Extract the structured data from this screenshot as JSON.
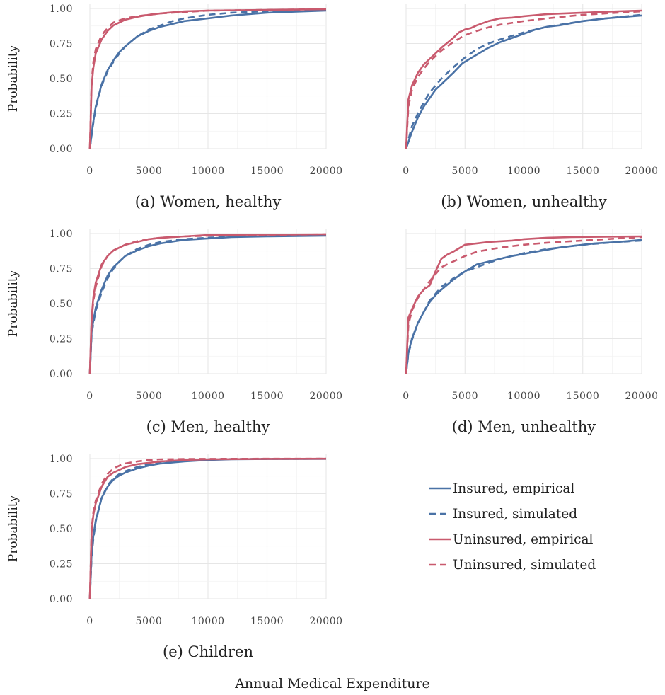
{
  "chart_data": {
    "type": "line",
    "xlabel": "Annual Medical Expenditure",
    "ylabel": "Probability",
    "xlim": [
      0,
      20000
    ],
    "ylim": [
      0,
      1
    ],
    "x_ticks": [
      "0",
      "5000",
      "10000",
      "15000",
      "20000"
    ],
    "y_ticks": [
      "0.00",
      "0.25",
      "0.50",
      "0.75",
      "1.00"
    ],
    "grid": true,
    "legend_position": "right",
    "legend": [
      {
        "label": "Insured, empirical",
        "color": "#4a72a6",
        "dash": "solid"
      },
      {
        "label": "Insured, simulated",
        "color": "#4a72a6",
        "dash": "dashed"
      },
      {
        "label": "Uninsured, empirical",
        "color": "#c95a6e",
        "dash": "solid"
      },
      {
        "label": "Uninsured, simulated",
        "color": "#c95a6e",
        "dash": "dashed"
      }
    ],
    "panels": [
      {
        "caption": "(a) Women, healthy",
        "series": [
          {
            "x": [
              0,
              250,
              500,
              1000,
              1500,
              2000,
              2500,
              3000,
              4000,
              5000,
              6000,
              7000,
              8000,
              10000,
              12000,
              15000,
              20000
            ],
            "y": [
              0,
              0.17,
              0.3,
              0.46,
              0.56,
              0.63,
              0.69,
              0.73,
              0.8,
              0.84,
              0.87,
              0.89,
              0.91,
              0.93,
              0.95,
              0.97,
              0.985
            ]
          },
          {
            "x": [
              0,
              250,
              500,
              1000,
              1500,
              2000,
              2500,
              3000,
              4000,
              5000,
              6000,
              7000,
              8000,
              10000,
              12000,
              15000,
              20000
            ],
            "y": [
              0,
              0.16,
              0.29,
              0.45,
              0.55,
              0.62,
              0.68,
              0.73,
              0.8,
              0.85,
              0.88,
              0.91,
              0.93,
              0.955,
              0.97,
              0.98,
              0.99
            ]
          },
          {
            "x": [
              0,
              150,
              300,
              500,
              1000,
              1500,
              2000,
              3000,
              4000,
              5000,
              6000,
              8000,
              10000,
              15000,
              20000
            ],
            "y": [
              0,
              0.45,
              0.58,
              0.68,
              0.78,
              0.84,
              0.88,
              0.92,
              0.94,
              0.955,
              0.965,
              0.98,
              0.985,
              0.99,
              0.995
            ]
          },
          {
            "x": [
              0,
              150,
              300,
              500,
              1000,
              1500,
              2000,
              3000,
              4000,
              5000,
              6000,
              8000,
              10000,
              15000,
              20000
            ],
            "y": [
              0,
              0.48,
              0.62,
              0.71,
              0.81,
              0.86,
              0.9,
              0.93,
              0.945,
              0.955,
              0.965,
              0.975,
              0.985,
              0.99,
              0.995
            ]
          }
        ]
      },
      {
        "caption": "(b) Women, unhealthy",
        "series": [
          {
            "x": [
              0,
              500,
              1000,
              1500,
              2000,
              2500,
              3000,
              4000,
              4800,
              5200,
              6000,
              7000,
              8000,
              9000,
              10000,
              11000,
              12000,
              13000,
              15000,
              17000,
              20000
            ],
            "y": [
              0,
              0.12,
              0.22,
              0.3,
              0.36,
              0.42,
              0.46,
              0.54,
              0.61,
              0.63,
              0.67,
              0.72,
              0.76,
              0.79,
              0.82,
              0.85,
              0.87,
              0.88,
              0.91,
              0.93,
              0.95
            ]
          },
          {
            "x": [
              0,
              500,
              1000,
              1500,
              2000,
              3000,
              4000,
              5000,
              6000,
              7000,
              8000,
              10000,
              12000,
              15000,
              17000,
              20000
            ],
            "y": [
              0,
              0.16,
              0.25,
              0.33,
              0.4,
              0.5,
              0.58,
              0.65,
              0.71,
              0.75,
              0.78,
              0.83,
              0.87,
              0.91,
              0.93,
              0.955
            ]
          },
          {
            "x": [
              0,
              200,
              500,
              1000,
              1500,
              2000,
              3000,
              4000,
              4500,
              5000,
              5500,
              6000,
              7000,
              8000,
              9000,
              10000,
              12000,
              15000,
              18000,
              20000
            ],
            "y": [
              0,
              0.35,
              0.45,
              0.54,
              0.6,
              0.64,
              0.72,
              0.79,
              0.83,
              0.85,
              0.86,
              0.88,
              0.91,
              0.93,
              0.935,
              0.945,
              0.96,
              0.97,
              0.98,
              0.985
            ]
          },
          {
            "x": [
              0,
              200,
              500,
              1000,
              1500,
              2000,
              3000,
              4000,
              5000,
              6000,
              7000,
              8000,
              10000,
              12000,
              15000,
              18000,
              20000
            ],
            "y": [
              0,
              0.3,
              0.42,
              0.51,
              0.57,
              0.62,
              0.7,
              0.76,
              0.81,
              0.84,
              0.865,
              0.885,
              0.91,
              0.93,
              0.955,
              0.97,
              0.98
            ]
          }
        ]
      },
      {
        "caption": "(c) Men, healthy",
        "series": [
          {
            "x": [
              0,
              150,
              300,
              500,
              1000,
              1500,
              2000,
              2500,
              3000,
              4000,
              5000,
              6000,
              8000,
              10000,
              12000,
              15000,
              20000
            ],
            "y": [
              0,
              0.3,
              0.38,
              0.47,
              0.6,
              0.7,
              0.76,
              0.8,
              0.84,
              0.88,
              0.91,
              0.93,
              0.955,
              0.965,
              0.975,
              0.98,
              0.985
            ]
          },
          {
            "x": [
              0,
              150,
              300,
              500,
              1000,
              1500,
              2000,
              2500,
              3000,
              4000,
              5000,
              6000,
              8000,
              10000,
              12000,
              15000,
              20000
            ],
            "y": [
              0,
              0.28,
              0.36,
              0.45,
              0.58,
              0.68,
              0.75,
              0.8,
              0.84,
              0.89,
              0.92,
              0.94,
              0.96,
              0.97,
              0.98,
              0.985,
              0.99
            ]
          },
          {
            "x": [
              0,
              150,
              300,
              500,
              1000,
              1500,
              2000,
              3000,
              4000,
              5000,
              6000,
              8000,
              10000,
              15000,
              20000
            ],
            "y": [
              0,
              0.4,
              0.55,
              0.65,
              0.78,
              0.84,
              0.88,
              0.92,
              0.94,
              0.96,
              0.97,
              0.98,
              0.99,
              0.993,
              0.995
            ]
          },
          {
            "x": [
              0,
              150,
              300,
              500,
              1000,
              1500,
              2000,
              3000,
              4000,
              5000,
              6000,
              8000,
              10000,
              15000,
              20000
            ],
            "y": [
              0,
              0.38,
              0.52,
              0.62,
              0.77,
              0.84,
              0.88,
              0.92,
              0.945,
              0.96,
              0.97,
              0.98,
              0.985,
              0.99,
              0.995
            ]
          }
        ]
      },
      {
        "caption": "(d) Men, unhealthy",
        "series": [
          {
            "x": [
              0,
              200,
              500,
              1000,
              1500,
              2000,
              2500,
              3000,
              4000,
              5000,
              6000,
              7000,
              8000,
              9000,
              10000,
              11000,
              12000,
              13000,
              14000,
              16000,
              18000,
              20000
            ],
            "y": [
              0,
              0.15,
              0.25,
              0.36,
              0.44,
              0.51,
              0.56,
              0.6,
              0.67,
              0.73,
              0.78,
              0.8,
              0.82,
              0.84,
              0.855,
              0.87,
              0.885,
              0.9,
              0.91,
              0.93,
              0.94,
              0.955
            ]
          },
          {
            "x": [
              0,
              200,
              500,
              1000,
              1500,
              2000,
              2500,
              3000,
              4000,
              5000,
              6000,
              7000,
              8000,
              10000,
              12000,
              15000,
              18000,
              20000
            ],
            "y": [
              0,
              0.14,
              0.24,
              0.36,
              0.44,
              0.52,
              0.57,
              0.62,
              0.68,
              0.73,
              0.76,
              0.79,
              0.82,
              0.86,
              0.89,
              0.92,
              0.94,
              0.95
            ]
          },
          {
            "x": [
              0,
              200,
              500,
              1000,
              1500,
              2000,
              2500,
              3000,
              3500,
              4000,
              5000,
              6000,
              7000,
              8000,
              9000,
              10000,
              11000,
              12000,
              14000,
              17000,
              20000
            ],
            "y": [
              0,
              0.4,
              0.46,
              0.55,
              0.6,
              0.63,
              0.73,
              0.82,
              0.85,
              0.87,
              0.92,
              0.93,
              0.94,
              0.945,
              0.95,
              0.96,
              0.965,
              0.97,
              0.975,
              0.978,
              0.98
            ]
          },
          {
            "x": [
              0,
              200,
              500,
              1000,
              1500,
              2000,
              2500,
              3000,
              4000,
              5000,
              6000,
              8000,
              10000,
              12000,
              15000,
              18000,
              20000
            ],
            "y": [
              0,
              0.35,
              0.45,
              0.54,
              0.6,
              0.66,
              0.71,
              0.76,
              0.8,
              0.84,
              0.87,
              0.9,
              0.92,
              0.935,
              0.95,
              0.965,
              0.975
            ]
          }
        ]
      },
      {
        "caption": "(e) Children",
        "series": [
          {
            "x": [
              0,
              150,
              300,
              500,
              1000,
              1500,
              2000,
              2500,
              3000,
              4000,
              5000,
              6000,
              8000,
              10000,
              12000,
              15000,
              20000
            ],
            "y": [
              0,
              0.33,
              0.45,
              0.56,
              0.72,
              0.8,
              0.85,
              0.88,
              0.9,
              0.93,
              0.95,
              0.965,
              0.98,
              0.99,
              0.995,
              0.997,
              0.998
            ]
          },
          {
            "x": [
              0,
              150,
              300,
              500,
              1000,
              1500,
              2000,
              2500,
              3000,
              4000,
              5000,
              6000,
              8000,
              10000,
              12000,
              15000,
              20000
            ],
            "y": [
              0,
              0.3,
              0.43,
              0.55,
              0.72,
              0.81,
              0.86,
              0.89,
              0.91,
              0.94,
              0.96,
              0.975,
              0.99,
              0.995,
              0.997,
              0.998,
              0.999
            ]
          },
          {
            "x": [
              0,
              150,
              300,
              500,
              1000,
              1500,
              2000,
              2500,
              3000,
              4000,
              5000,
              6000,
              8000,
              10000,
              15000,
              20000
            ],
            "y": [
              0,
              0.48,
              0.6,
              0.68,
              0.8,
              0.87,
              0.9,
              0.92,
              0.94,
              0.96,
              0.97,
              0.98,
              0.99,
              0.995,
              0.998,
              0.999
            ]
          },
          {
            "x": [
              0,
              150,
              300,
              500,
              1000,
              1500,
              2000,
              2500,
              3000,
              4000,
              5000,
              6000,
              8000,
              10000,
              15000,
              20000
            ],
            "y": [
              0,
              0.5,
              0.62,
              0.7,
              0.82,
              0.89,
              0.93,
              0.95,
              0.965,
              0.98,
              0.99,
              0.995,
              0.997,
              0.998,
              0.999,
              0.999
            ]
          }
        ]
      }
    ]
  }
}
